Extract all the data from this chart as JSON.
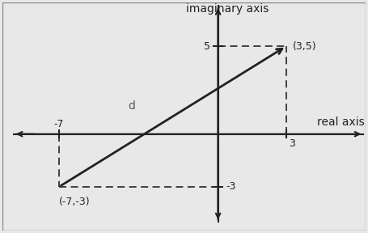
{
  "background_color": "#e8e8e8",
  "plot_bg_color": "#e8e8e8",
  "border_color": "#888888",
  "point1": [
    -7,
    -3
  ],
  "point2": [
    3,
    5
  ],
  "xlim": [
    -9.5,
    6.5
  ],
  "ylim": [
    -5.5,
    7.5
  ],
  "x_axis_label": "real axis",
  "y_axis_label": "imaginary axis",
  "label_p1": "(-7,-3)",
  "label_p2": "(3,5)",
  "label_d": "d",
  "label_tick_xneg": "-7",
  "label_tick_xpos": "3",
  "label_tick_yneg": "-3",
  "label_tick_ypos": "5",
  "line_color": "#222222",
  "dashed_color": "#333333",
  "d_label_color": "#555555",
  "font_size_axis": 10,
  "font_size_tick": 9,
  "font_size_point": 9,
  "font_size_d": 10
}
